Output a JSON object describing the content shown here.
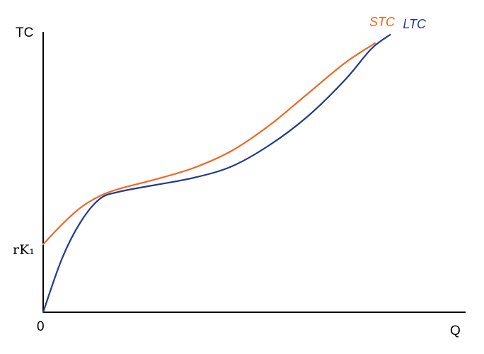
{
  "chart_data": {
    "type": "line",
    "ylabel": "TC",
    "xlabel": "Q",
    "origin_label": "0",
    "y_tick_label": "rK₁",
    "grid": false,
    "series": [
      {
        "name": "STC",
        "color": "#f26522",
        "points": [
          [
            0,
            24
          ],
          [
            5,
            31
          ],
          [
            10,
            37
          ],
          [
            15,
            41
          ],
          [
            20,
            43.5
          ],
          [
            30,
            47
          ],
          [
            40,
            51
          ],
          [
            50,
            57
          ],
          [
            60,
            66
          ],
          [
            70,
            77
          ],
          [
            80,
            88
          ],
          [
            88,
            95
          ]
        ]
      },
      {
        "name": "LTC",
        "color": "#1f3a8f",
        "points": [
          [
            0,
            0
          ],
          [
            5,
            19
          ],
          [
            10,
            32
          ],
          [
            15,
            40
          ],
          [
            20,
            42.5
          ],
          [
            30,
            45
          ],
          [
            40,
            47.5
          ],
          [
            50,
            51.5
          ],
          [
            60,
            59
          ],
          [
            70,
            69
          ],
          [
            80,
            82
          ],
          [
            87,
            93
          ],
          [
            92,
            98
          ]
        ]
      }
    ]
  }
}
